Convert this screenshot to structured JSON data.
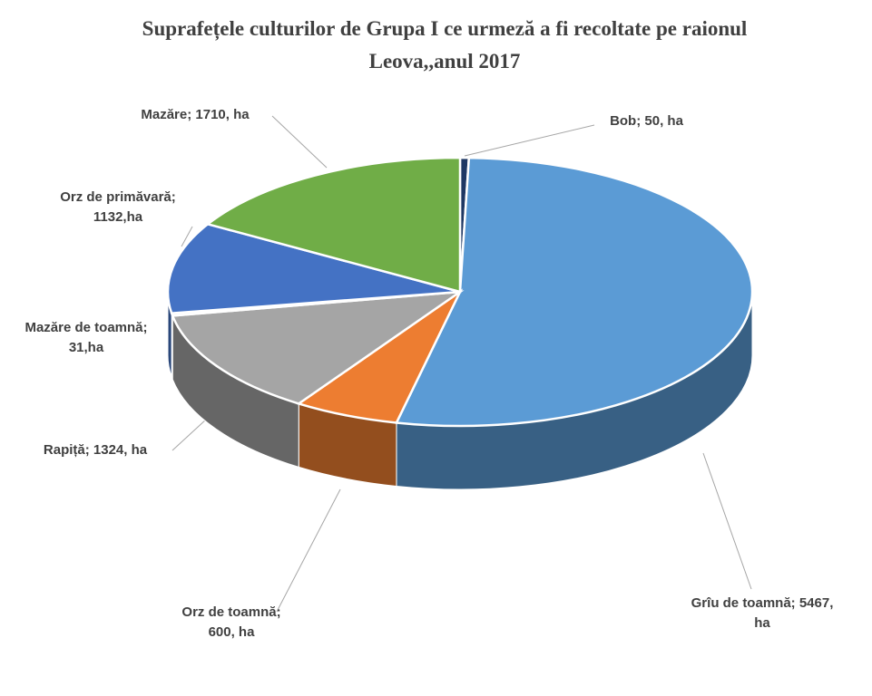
{
  "chart_data": {
    "type": "pie3d",
    "title": "Suprafețele culturilor  de Grupa  I ce urmeză  a fi recoltate pe raionul  Leova,,anul 2017",
    "values": [
      50,
      5467,
      600,
      1324,
      31,
      1132,
      1710
    ],
    "value_labels": [
      "Bob; 50, ha",
      "Grîu de toamnă; 5467, ha",
      "Orz de toamnă; 600, ha",
      "Rapiță; 1324, ha",
      "Mazăre de toamnă; 31,ha",
      "Orz de primăvară; 1132,ha",
      "Mazăre; 1710, ha"
    ],
    "colors": [
      "#1f3864",
      "#5b9bd5",
      "#ed7d31",
      "#a5a5a5",
      "#ececec",
      "#4472c4",
      "#70ad47"
    ]
  }
}
